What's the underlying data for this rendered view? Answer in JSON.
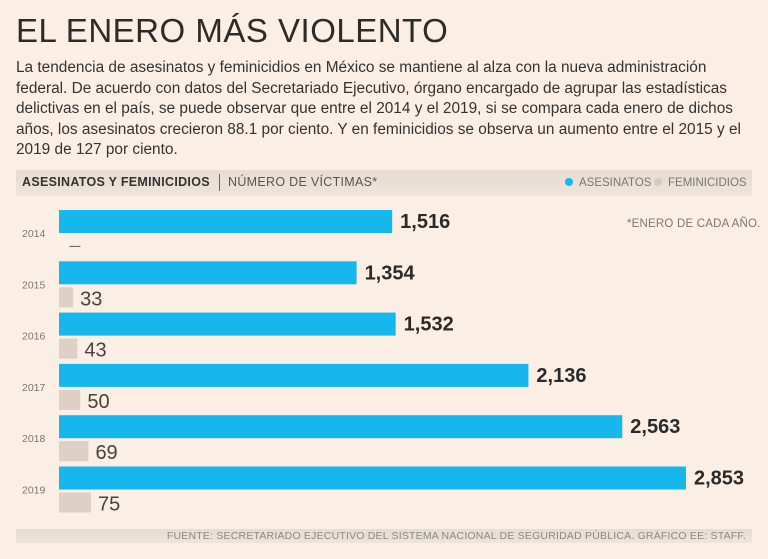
{
  "title": "EL ENERO MÁS VIOLENTO",
  "intro": "La tendencia de asesinatos y feminicidios en México se mantiene al alza con la nueva administración federal. De acuerdo con datos del Secretariado Ejecutivo, órgano encargado de agrupar las estadísticas delictivas en el país, se puede observar que entre el 2014 y el 2019, si se compara cada enero de dichos años, los asesinatos crecieron 88.1 por ciento. Y en feminicidios se observa un aumento entre el 2015 y el 2019 de 127 por ciento.",
  "header": {
    "title": "ASESINATOS Y FEMINICIDIOS",
    "subtitle": "NÚMERO DE VÍCTIMAS*"
  },
  "legend": {
    "asesinatos": "ASESINATOS",
    "feminicidios": "FEMINICIDIOS"
  },
  "note": "*ENERO DE CADA AÑO.",
  "source": "FUENTE: SECRETARIADO EJECUTIVO DEL SISTEMA NACIONAL DE SEGURIDAD PÚBLICA. GRÁFICO EE: STAFF.",
  "colors": {
    "asesinatos": "#15b7ec",
    "feminicidios": "#ddd1c7",
    "background": "#fbeee4"
  },
  "chart_data": {
    "type": "bar",
    "orientation": "horizontal",
    "title": "ASESINATOS Y FEMINICIDIOS",
    "subtitle": "NÚMERO DE VÍCTIMAS*",
    "categories": [
      "2014",
      "2015",
      "2016",
      "2017",
      "2018",
      "2019"
    ],
    "series": [
      {
        "name": "ASESINATOS",
        "values": [
          1516,
          1354,
          1532,
          2136,
          2563,
          2853
        ],
        "labels": [
          "1,516",
          "1,354",
          "1,532",
          "2,136",
          "2,563",
          "2,853"
        ]
      },
      {
        "name": "FEMINICIDIOS",
        "values": [
          null,
          33,
          43,
          50,
          69,
          75
        ],
        "labels": [
          "---",
          "33",
          "43",
          "50",
          "69",
          "75"
        ]
      }
    ],
    "xlabel": "",
    "ylabel": "",
    "legend": "top-right",
    "grid": false
  }
}
